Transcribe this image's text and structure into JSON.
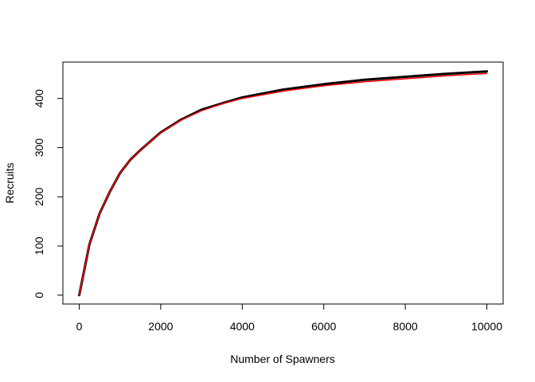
{
  "chart_data": {
    "type": "line",
    "title": "",
    "xlabel": "Number of Spawners",
    "ylabel": "Recruits",
    "xlim": [
      -400,
      10400
    ],
    "ylim": [
      -18,
      474
    ],
    "x_ticks": [
      {
        "value": 0,
        "label": "0"
      },
      {
        "value": 2000,
        "label": "2000"
      },
      {
        "value": 4000,
        "label": "4000"
      },
      {
        "value": 6000,
        "label": "6000"
      },
      {
        "value": 8000,
        "label": "8000"
      },
      {
        "value": 10000,
        "label": "10000"
      }
    ],
    "y_ticks": [
      {
        "value": 0,
        "label": "0"
      },
      {
        "value": 100,
        "label": "100"
      },
      {
        "value": 200,
        "label": "200"
      },
      {
        "value": 300,
        "label": "300"
      },
      {
        "value": 400,
        "label": "400"
      }
    ],
    "grid": false,
    "legend": "none",
    "series": [
      {
        "color": "#000000",
        "x": [
          0,
          250,
          500,
          750,
          1000,
          1250,
          1500,
          2000,
          2500,
          3000,
          3500,
          4000,
          5000,
          6000,
          7000,
          8000,
          9000,
          10000
        ],
        "y": [
          0,
          103,
          166,
          210,
          248,
          275,
          295,
          331,
          357,
          377,
          390,
          402,
          418,
          429,
          438,
          444,
          450,
          455
        ]
      },
      {
        "color": "#ff0000",
        "x": [
          0,
          250,
          500,
          750,
          1000,
          1250,
          1500,
          2000,
          2500,
          3000,
          3500,
          4000,
          5000,
          6000,
          7000,
          8000,
          9000,
          10000
        ],
        "y": [
          0,
          103,
          166,
          210,
          248,
          275,
          295,
          330,
          356,
          375,
          389,
          400,
          415,
          426,
          434,
          440,
          446,
          451
        ]
      }
    ]
  }
}
